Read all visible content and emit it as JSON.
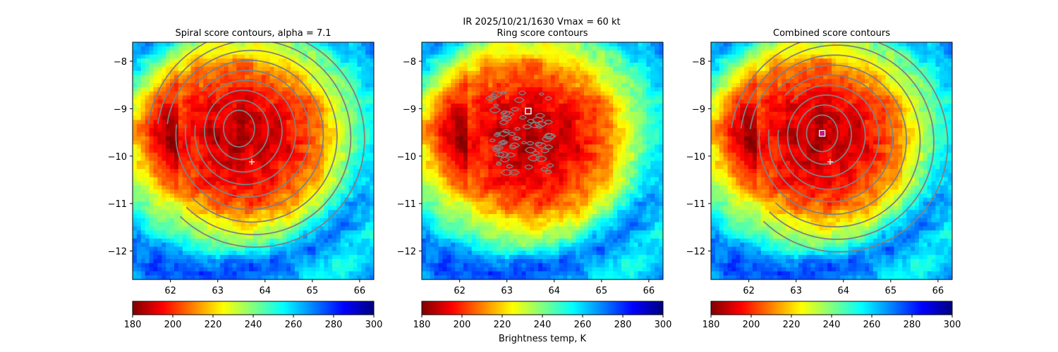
{
  "suptitle": "IR  2025/10/21/1630    Vmax = 60 kt",
  "colorbar_label": "Brightness temp, K",
  "colormap": {
    "name": "jet_r",
    "stops": [
      "#800000",
      "#ff0000",
      "#ff8000",
      "#ffff00",
      "#80ff80",
      "#00ffff",
      "#0080ff",
      "#0000ff",
      "#000080"
    ],
    "range": [
      180,
      300
    ],
    "ticks": [
      "180",
      "200",
      "220",
      "240",
      "260",
      "280",
      "300"
    ]
  },
  "colors": {
    "contour": "#808080",
    "center_marker": "#ffffff",
    "ring_marker": "#ffffff",
    "combined_marker": "#c0188a"
  },
  "chart_data": [
    {
      "type": "heatmap",
      "title": "Spiral score contours, alpha =  7.1",
      "xlim": [
        61.2,
        66.3
      ],
      "ylim": [
        -12.6,
        -7.6
      ],
      "xticks": [
        "62",
        "63",
        "64",
        "65",
        "66"
      ],
      "yticks": [
        "−8",
        "−9",
        "−10",
        "−11",
        "−12"
      ],
      "center_marker": [
        63.72,
        -10.12
      ],
      "contour_style": "spiral",
      "contour_center": [
        63.45,
        -9.42
      ]
    },
    {
      "type": "heatmap",
      "title": "Ring score contours",
      "xlim": [
        61.2,
        66.3
      ],
      "ylim": [
        -12.6,
        -7.6
      ],
      "xticks": [
        "62",
        "63",
        "64",
        "65",
        "66"
      ],
      "yticks": [
        "−8",
        "−9",
        "−10",
        "−11",
        "−12"
      ],
      "ring_marker": [
        63.45,
        -9.05
      ],
      "contour_style": "ring-noise"
    },
    {
      "type": "heatmap",
      "title": "Combined score contours",
      "xlim": [
        61.2,
        66.3
      ],
      "ylim": [
        -12.6,
        -7.6
      ],
      "xticks": [
        "62",
        "63",
        "64",
        "65",
        "66"
      ],
      "yticks": [
        "−8",
        "−9",
        "−10",
        "−11",
        "−12"
      ],
      "center_marker": [
        63.72,
        -10.12
      ],
      "combined_marker": [
        63.55,
        -9.52
      ],
      "contour_style": "spiral",
      "contour_center": [
        63.55,
        -9.52
      ]
    }
  ]
}
